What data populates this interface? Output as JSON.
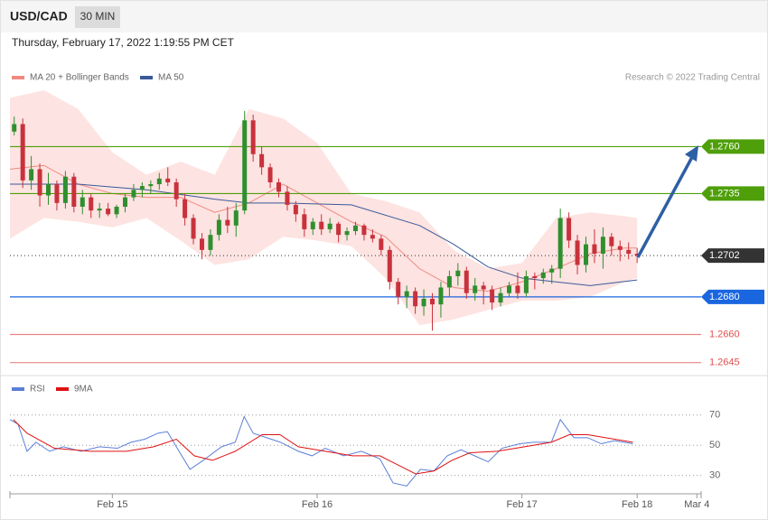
{
  "header": {
    "symbol": "USD/CAD",
    "timeframe": "30 MIN",
    "timestamp": "Thursday, February 17, 2022 1:19:55 PM CET",
    "credit": "Research © 2022 Trading Central"
  },
  "chart_data": [
    {
      "type": "candlestick",
      "xlim": [
        0,
        162
      ],
      "ylim": [
        1.2641,
        1.279
      ],
      "up_color": "#2f8f2f",
      "down_color": "#c8323c",
      "candles": [
        [
          1,
          1.2768,
          1.2776,
          1.2766,
          1.2772
        ],
        [
          3,
          1.2772,
          1.2775,
          1.2738,
          1.2742
        ],
        [
          5,
          1.2742,
          1.2755,
          1.2737,
          1.2748
        ],
        [
          7,
          1.2748,
          1.2751,
          1.2728,
          1.2734
        ],
        [
          9,
          1.2734,
          1.2746,
          1.2729,
          1.274
        ],
        [
          11,
          1.274,
          1.2742,
          1.2726,
          1.273
        ],
        [
          13,
          1.273,
          1.2747,
          1.2727,
          1.2744
        ],
        [
          15,
          1.2744,
          1.2746,
          1.2725,
          1.2728
        ],
        [
          17,
          1.2728,
          1.2737,
          1.2724,
          1.2733
        ],
        [
          19,
          1.2733,
          1.2735,
          1.2722,
          1.2726
        ],
        [
          21,
          1.2726,
          1.273,
          1.2722,
          1.2727
        ],
        [
          23,
          1.2727,
          1.273,
          1.2723,
          1.2724
        ],
        [
          25,
          1.2724,
          1.2729,
          1.2722,
          1.2728
        ],
        [
          27,
          1.2728,
          1.2735,
          1.2725,
          1.2733
        ],
        [
          29,
          1.2733,
          1.274,
          1.2731,
          1.2737
        ],
        [
          31,
          1.2737,
          1.2741,
          1.2733,
          1.2739
        ],
        [
          33,
          1.2739,
          1.2742,
          1.2735,
          1.274
        ],
        [
          35,
          1.274,
          1.2746,
          1.2737,
          1.2743
        ],
        [
          37,
          1.2743,
          1.2749,
          1.2739,
          1.2741
        ],
        [
          39,
          1.2741,
          1.2743,
          1.2728,
          1.2732
        ],
        [
          41,
          1.2732,
          1.2735,
          1.2718,
          1.2722
        ],
        [
          43,
          1.2722,
          1.2724,
          1.2708,
          1.2711
        ],
        [
          45,
          1.2711,
          1.2714,
          1.27,
          1.2705
        ],
        [
          47,
          1.2705,
          1.2716,
          1.2702,
          1.2713
        ],
        [
          49,
          1.2713,
          1.2724,
          1.271,
          1.2721
        ],
        [
          51,
          1.2721,
          1.2728,
          1.2714,
          1.2718
        ],
        [
          53,
          1.2718,
          1.273,
          1.2712,
          1.2726
        ],
        [
          55,
          1.2726,
          1.2779,
          1.2724,
          1.2774
        ],
        [
          57,
          1.2774,
          1.2777,
          1.2752,
          1.2756
        ],
        [
          59,
          1.2756,
          1.276,
          1.2745,
          1.2749
        ],
        [
          61,
          1.2749,
          1.2751,
          1.2738,
          1.2741
        ],
        [
          63,
          1.2741,
          1.2743,
          1.2733,
          1.2736
        ],
        [
          65,
          1.2736,
          1.2739,
          1.2726,
          1.2729
        ],
        [
          67,
          1.2729,
          1.2731,
          1.272,
          1.2724
        ],
        [
          69,
          1.2724,
          1.2727,
          1.2712,
          1.2716
        ],
        [
          71,
          1.2716,
          1.2722,
          1.2713,
          1.272
        ],
        [
          73,
          1.272,
          1.2724,
          1.2713,
          1.2716
        ],
        [
          75,
          1.2716,
          1.2722,
          1.2714,
          1.2719
        ],
        [
          77,
          1.2719,
          1.272,
          1.2709,
          1.2713
        ],
        [
          79,
          1.2713,
          1.2717,
          1.271,
          1.2715
        ],
        [
          81,
          1.2715,
          1.272,
          1.2713,
          1.2718
        ],
        [
          83,
          1.2718,
          1.2719,
          1.271,
          1.2713
        ],
        [
          85,
          1.2713,
          1.2716,
          1.2709,
          1.2711
        ],
        [
          87,
          1.2711,
          1.2713,
          1.2702,
          1.2705
        ],
        [
          89,
          1.2705,
          1.2707,
          1.2684,
          1.2688
        ],
        [
          91,
          1.2688,
          1.269,
          1.2676,
          1.268
        ],
        [
          93,
          1.268,
          1.2686,
          1.2674,
          1.2683
        ],
        [
          95,
          1.2683,
          1.2685,
          1.2671,
          1.2675
        ],
        [
          97,
          1.2675,
          1.2684,
          1.267,
          1.2679
        ],
        [
          99,
          1.2679,
          1.2682,
          1.2662,
          1.2676
        ],
        [
          101,
          1.2676,
          1.2688,
          1.2669,
          1.2685
        ],
        [
          103,
          1.2685,
          1.2694,
          1.268,
          1.2691
        ],
        [
          105,
          1.2691,
          1.2698,
          1.2686,
          1.2694
        ],
        [
          107,
          1.2694,
          1.2696,
          1.2679,
          1.2682
        ],
        [
          109,
          1.2682,
          1.269,
          1.2678,
          1.2686
        ],
        [
          111,
          1.2686,
          1.2688,
          1.2676,
          1.2684
        ],
        [
          113,
          1.2684,
          1.2686,
          1.2673,
          1.2677
        ],
        [
          115,
          1.2677,
          1.2685,
          1.2675,
          1.2682
        ],
        [
          117,
          1.2682,
          1.2688,
          1.268,
          1.2686
        ],
        [
          119,
          1.2686,
          1.2693,
          1.2679,
          1.2682
        ],
        [
          121,
          1.2682,
          1.2694,
          1.268,
          1.2691
        ],
        [
          123,
          1.2691,
          1.2693,
          1.2684,
          1.269
        ],
        [
          125,
          1.269,
          1.2695,
          1.2687,
          1.2693
        ],
        [
          127,
          1.2693,
          1.2697,
          1.2687,
          1.2695
        ],
        [
          129,
          1.2695,
          1.2727,
          1.269,
          1.2722
        ],
        [
          131,
          1.2722,
          1.2725,
          1.2706,
          1.271
        ],
        [
          133,
          1.271,
          1.2713,
          1.2692,
          1.2697
        ],
        [
          135,
          1.2697,
          1.2712,
          1.2693,
          1.2708
        ],
        [
          137,
          1.2708,
          1.2716,
          1.2698,
          1.2703
        ],
        [
          139,
          1.2703,
          1.2717,
          1.2695,
          1.2712
        ],
        [
          141,
          1.2712,
          1.2714,
          1.2702,
          1.2707
        ],
        [
          143,
          1.2707,
          1.271,
          1.2699,
          1.2705
        ],
        [
          145,
          1.2705,
          1.2709,
          1.27,
          1.2703
        ],
        [
          147,
          1.2703,
          1.2706,
          1.2698,
          1.2702
        ]
      ],
      "bands": {
        "name": "MA 20 + Bollinger Bands",
        "color": "#f08a80",
        "fill": "#fde3e1",
        "x": [
          0,
          8,
          16,
          24,
          32,
          40,
          48,
          56,
          64,
          72,
          80,
          88,
          96,
          104,
          112,
          120,
          128,
          136,
          144,
          147
        ],
        "upper": [
          1.2786,
          1.279,
          1.278,
          1.2757,
          1.2745,
          1.2752,
          1.2745,
          1.278,
          1.2775,
          1.2762,
          1.2735,
          1.2731,
          1.2725,
          1.2705,
          1.2695,
          1.2698,
          1.2722,
          1.2725,
          1.2723,
          1.2722
        ],
        "lower": [
          1.2711,
          1.2722,
          1.272,
          1.2717,
          1.2722,
          1.271,
          1.2697,
          1.27,
          1.2712,
          1.271,
          1.2707,
          1.269,
          1.2665,
          1.2668,
          1.2673,
          1.2678,
          1.2678,
          1.268,
          1.2688,
          1.269
        ],
        "ma": [
          1.2748,
          1.275,
          1.274,
          1.2735,
          1.2733,
          1.2733,
          1.2725,
          1.273,
          1.274,
          1.273,
          1.272,
          1.2712,
          1.2695,
          1.2685,
          1.2683,
          1.2688,
          1.2695,
          1.2703,
          1.2706,
          1.2706
        ]
      },
      "ma50": {
        "name": "MA 50",
        "color": "#3a5a9a",
        "x": [
          0,
          16,
          32,
          48,
          56,
          64,
          80,
          96,
          104,
          112,
          120,
          128,
          136,
          147
        ],
        "values": [
          1.274,
          1.274,
          1.2737,
          1.2732,
          1.273,
          1.273,
          1.2729,
          1.2718,
          1.2708,
          1.2696,
          1.269,
          1.2688,
          1.2686,
          1.2689
        ]
      },
      "levels": [
        {
          "value": 1.276,
          "label": "1.2760",
          "color": "#4e9f0a",
          "line": "solid",
          "boxed": true
        },
        {
          "value": 1.2735,
          "label": "1.2735",
          "color": "#4e9f0a",
          "line": "solid",
          "boxed": true
        },
        {
          "value": 1.2702,
          "label": "1.2702",
          "color": "#333333",
          "line": "dotted",
          "boxed": true
        },
        {
          "value": 1.268,
          "label": "1.2680",
          "color": "#1a66e0",
          "line": "solid",
          "boxed": true
        },
        {
          "value": 1.266,
          "label": "1.2660",
          "color": "#e05050",
          "line": "solid",
          "boxed": false
        },
        {
          "value": 1.2645,
          "label": "1.2645",
          "color": "#e05050",
          "line": "solid",
          "boxed": false
        }
      ]
    },
    {
      "type": "line",
      "xlim": [
        0,
        162
      ],
      "ylim": [
        19,
        95
      ],
      "yticks": [
        30,
        50,
        70
      ],
      "grid": true,
      "xticks": [
        {
          "value": 24,
          "label": "Feb 15"
        },
        {
          "value": 72,
          "label": "Feb 16"
        },
        {
          "value": 120,
          "label": "Feb 17"
        },
        {
          "value": 147,
          "label": "Feb 18"
        },
        {
          "value": 161,
          "label": "Mar 4"
        }
      ],
      "series": [
        {
          "name": "RSI",
          "color": "#5b7fd6",
          "x": [
            0,
            1.9,
            4,
            6.1,
            9.3,
            12.5,
            16.7,
            21,
            25.2,
            28.4,
            31.6,
            34.7,
            36.9,
            39,
            42.2,
            45.3,
            49.6,
            52.8,
            54.9,
            57,
            60.2,
            63.4,
            67.6,
            70.8,
            73.9,
            78.2,
            82.4,
            86.7,
            89.8,
            93,
            96.2,
            99.4,
            102.5,
            105.7,
            108.9,
            112.1,
            115.3,
            119.5,
            122.7,
            126.9,
            129,
            132.2,
            135.4,
            138.6,
            141.7,
            146
          ],
          "values": [
            67,
            64,
            46,
            52,
            46,
            49,
            46,
            49,
            48,
            52,
            54,
            58,
            59,
            49,
            34,
            40,
            49,
            52,
            69,
            58,
            55,
            52,
            46,
            43,
            48,
            43,
            46,
            41,
            25,
            23,
            34,
            33,
            43,
            47,
            43,
            39,
            48,
            51,
            52,
            52,
            67,
            55,
            55,
            51,
            53,
            51
          ]
        },
        {
          "name": "9MA",
          "color": "#e01010",
          "x": [
            0.8,
            4,
            10.4,
            18.9,
            27.3,
            33.7,
            39,
            43.2,
            47.5,
            52.8,
            59.1,
            63.3,
            67.6,
            73.9,
            80.3,
            86.7,
            90.9,
            95.1,
            99.4,
            103.6,
            107.8,
            114.2,
            120.6,
            126.9,
            131.1,
            135.4,
            141.7,
            146
          ],
          "values": [
            67,
            58,
            48,
            46,
            46,
            49,
            54,
            43,
            40,
            46,
            57,
            57,
            49,
            46,
            43,
            43,
            37,
            31,
            33,
            40,
            45,
            46,
            49,
            52,
            57,
            57,
            54,
            52
          ]
        }
      ]
    }
  ]
}
